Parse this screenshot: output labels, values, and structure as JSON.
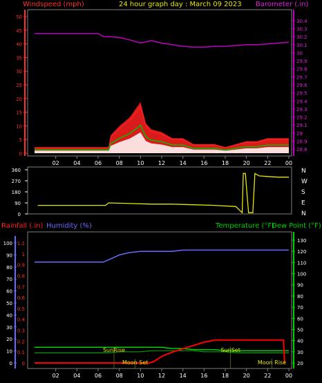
{
  "header": {
    "title": "24 hour graph day : March 09 2023",
    "left_label": "Windspeed (mph)",
    "right_label": "Barometer (.in)"
  },
  "colors": {
    "background": "#000000",
    "frame": "#808080",
    "wind": "#ff2020",
    "wind_avg": "#00c000",
    "wind_gust_fill": "#ffffff",
    "barometer": "#c000c0",
    "direction": "#e8e800",
    "humidity": "#6a6aff",
    "temperature": "#00d000",
    "dewpoint": "#00a000",
    "rainfall": "#ff0000",
    "sun_moon_text": "#e8e800",
    "title": "#e8e800"
  },
  "chart_data": [
    {
      "type": "line",
      "name": "wind-barometer",
      "left_axis": {
        "label": "Windspeed (mph)",
        "ticks": [
          "0",
          "5",
          "10",
          "15",
          "20",
          "25",
          "30",
          "35",
          "40",
          "45",
          "50"
        ],
        "range": [
          0,
          50
        ]
      },
      "right_axis": {
        "label": "Barometer (.in)",
        "ticks": [
          "28.8",
          "28.9",
          "29",
          "29.1",
          "29.2",
          "29.3",
          "29.4",
          "29.5",
          "29.6",
          "29.7",
          "29.8",
          "29.9",
          "30",
          "30.1",
          "30.2",
          "30.3",
          "30.4"
        ],
        "range": [
          28.75,
          30.45
        ]
      },
      "x_ticks": [
        "02",
        "04",
        "06",
        "08",
        "10",
        "12",
        "14",
        "16",
        "18",
        "20",
        "22",
        "00"
      ],
      "series": [
        {
          "name": "Windspeed (mph)",
          "axis": "left",
          "x": [
            0,
            7,
            7.2,
            8,
            9,
            10,
            10.5,
            11,
            12,
            13,
            14,
            15,
            16,
            17,
            18,
            19,
            20,
            21,
            22,
            23,
            24
          ],
          "y": [
            2,
            2,
            6,
            9,
            12,
            17,
            10,
            8,
            7,
            5,
            5,
            3,
            3,
            3,
            2,
            3,
            4,
            4,
            5,
            5,
            5
          ]
        },
        {
          "name": "Barometer (.in)",
          "axis": "right",
          "x": [
            0,
            3,
            6,
            6.5,
            7,
            8,
            9,
            10,
            11,
            12,
            13,
            14,
            15,
            16,
            17,
            18,
            19,
            20,
            21,
            22,
            23,
            24
          ],
          "y": [
            30.24,
            30.24,
            30.24,
            30.2,
            30.2,
            30.19,
            30.16,
            30.12,
            30.15,
            30.12,
            30.1,
            30.08,
            30.07,
            30.07,
            30.08,
            30.08,
            30.09,
            30.1,
            30.1,
            30.11,
            30.12,
            30.13
          ]
        }
      ]
    },
    {
      "type": "line",
      "name": "wind-direction",
      "left_ticks": [
        "0",
        "90",
        "180",
        "270",
        "360"
      ],
      "right_labels": [
        "N",
        "W",
        "S",
        "E",
        "N"
      ],
      "range": [
        0,
        360
      ],
      "series": [
        {
          "name": "direction",
          "x": [
            0.3,
            1,
            3,
            6,
            6.7,
            7,
            9,
            11,
            13,
            15,
            17,
            19,
            19.6,
            19.7,
            19.9,
            20.2,
            20.6,
            20.8,
            21.2,
            22,
            23,
            24
          ],
          "y": [
            70,
            70,
            70,
            70,
            70,
            90,
            85,
            80,
            80,
            75,
            70,
            60,
            10,
            330,
            330,
            10,
            10,
            330,
            310,
            305,
            300,
            300
          ]
        }
      ]
    },
    {
      "type": "line",
      "name": "rain-humidity-temperature",
      "left_axis": {
        "labels": [
          "Rainfall (.in)",
          "Humidity (%)"
        ],
        "rain_ticks": [
          "0",
          "0.1",
          "0.2",
          "0.3",
          "0.4",
          "0.5",
          "0.6",
          "0.7",
          "0.8",
          "0.9",
          "1",
          "1.1"
        ],
        "humidity_ticks": [
          "0",
          "10",
          "20",
          "30",
          "40",
          "50",
          "60",
          "70",
          "80",
          "90",
          "100"
        ]
      },
      "right_axis": {
        "labels": [
          "Temperature (°F)",
          "Dew Point (°F)"
        ],
        "ticks": [
          "20",
          "30",
          "40",
          "50",
          "60",
          "70",
          "80",
          "90",
          "100",
          "110",
          "120",
          "130"
        ],
        "range": [
          20,
          130
        ]
      },
      "x_ticks": [
        "02",
        "04",
        "06",
        "08",
        "10",
        "12",
        "14",
        "16",
        "18",
        "20",
        "22",
        "00"
      ],
      "series": [
        {
          "name": "Humidity (%)",
          "x": [
            0,
            6.5,
            7,
            7.5,
            8,
            9,
            10,
            11,
            12,
            13,
            14,
            16,
            18,
            20,
            22,
            24
          ],
          "y": [
            84,
            84,
            86,
            88,
            90,
            92,
            93,
            93,
            93,
            93,
            94,
            94,
            94,
            94,
            94,
            94
          ]
        },
        {
          "name": "Temperature (°F)",
          "x": [
            0,
            6,
            7,
            8,
            9,
            10,
            11,
            12,
            13,
            14,
            15,
            16,
            17,
            18,
            19,
            20,
            21,
            22,
            23,
            24
          ],
          "y": [
            34,
            34,
            34,
            34,
            34,
            34,
            34,
            34,
            33,
            33,
            32,
            32,
            32,
            31,
            31,
            31,
            31,
            31,
            31,
            31
          ]
        },
        {
          "name": "Dew Point (°F)",
          "x": [
            0,
            6,
            7,
            8,
            9,
            10,
            11,
            12,
            13,
            14,
            15,
            16,
            17,
            18,
            19,
            20,
            21,
            22,
            23,
            24
          ],
          "y": [
            29,
            29,
            29,
            30,
            30,
            30,
            31,
            31,
            31,
            31,
            31,
            30,
            30,
            30,
            29,
            29,
            29,
            29,
            29,
            29
          ]
        },
        {
          "name": "Rainfall (.in)",
          "x": [
            0,
            10.8,
            11.2,
            12,
            13,
            14,
            15,
            16,
            16.5,
            17,
            18,
            20,
            22,
            23.5,
            23.6
          ],
          "y": [
            0,
            0,
            0.01,
            0.06,
            0.1,
            0.13,
            0.16,
            0.19,
            0.2,
            0.21,
            0.21,
            0.21,
            0.21,
            0.21,
            0
          ]
        }
      ],
      "markers": [
        {
          "label": "SunRise",
          "x": 7.5,
          "row": "top"
        },
        {
          "label": "SunSet",
          "x": 18.5,
          "row": "top"
        },
        {
          "label": "Moon Set",
          "x": 9.5,
          "row": "bottom"
        },
        {
          "label": "Moon Rise",
          "x": 22.4,
          "row": "bottom"
        }
      ]
    }
  ]
}
